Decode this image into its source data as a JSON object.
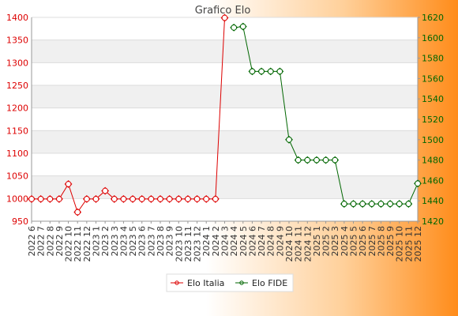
{
  "chart_data": {
    "type": "line",
    "title": "Grafico Elo",
    "categories": [
      "2022 6",
      "2022 7",
      "2022 8",
      "2022 9",
      "2022 10",
      "2022 11",
      "2022 12",
      "2023 1",
      "2023 2",
      "2023 3",
      "2023 4",
      "2023 5",
      "2023 6",
      "2023 7",
      "2023 8",
      "2023 9",
      "2023 10",
      "2023 11",
      "2023 12",
      "2024 1",
      "2024 2",
      "2024 3",
      "2024 4",
      "2024 5",
      "2024 6",
      "2024 7",
      "2024 8",
      "2024 9",
      "2024 10",
      "2024 11",
      "2024 12",
      "2025 1",
      "2025 2",
      "2025 3",
      "2025 4",
      "2025 5",
      "2025 6",
      "2025 7",
      "2025 8",
      "2025 9",
      "2025 10",
      "2025 11",
      "2025 12"
    ],
    "y_left": {
      "ylim": [
        950,
        1400
      ],
      "ticks": [
        950,
        1000,
        1050,
        1100,
        1150,
        1200,
        1250,
        1300,
        1350,
        1400
      ]
    },
    "y_right": {
      "ylim": [
        1420,
        1620
      ],
      "ticks": [
        1420,
        1440,
        1460,
        1480,
        1500,
        1520,
        1540,
        1560,
        1580,
        1600,
        1620
      ]
    },
    "grid": "horizontal",
    "legend_position": "bottom",
    "series": [
      {
        "name": "Elo Italia",
        "axis": "left",
        "color": "#dd0000",
        "values": [
          999,
          999,
          999,
          999,
          1032,
          970,
          999,
          999,
          1017,
          999,
          999,
          999,
          999,
          999,
          999,
          999,
          999,
          999,
          999,
          999,
          999,
          1399,
          null,
          null,
          null,
          null,
          null,
          null,
          null,
          null,
          null,
          null,
          null,
          null,
          null,
          null,
          null,
          null,
          null,
          null,
          null,
          null,
          null
        ]
      },
      {
        "name": "Elo FIDE",
        "axis": "right",
        "color": "#006600",
        "values": [
          null,
          null,
          null,
          null,
          null,
          null,
          null,
          null,
          null,
          null,
          null,
          null,
          null,
          null,
          null,
          null,
          null,
          null,
          null,
          null,
          null,
          null,
          1610,
          1611,
          1567,
          1567,
          1567,
          1567,
          1500,
          1480,
          1480,
          1480,
          1480,
          1480,
          1437,
          1437,
          1437,
          1437,
          1437,
          1437,
          1437,
          1437,
          1457
        ]
      }
    ]
  }
}
